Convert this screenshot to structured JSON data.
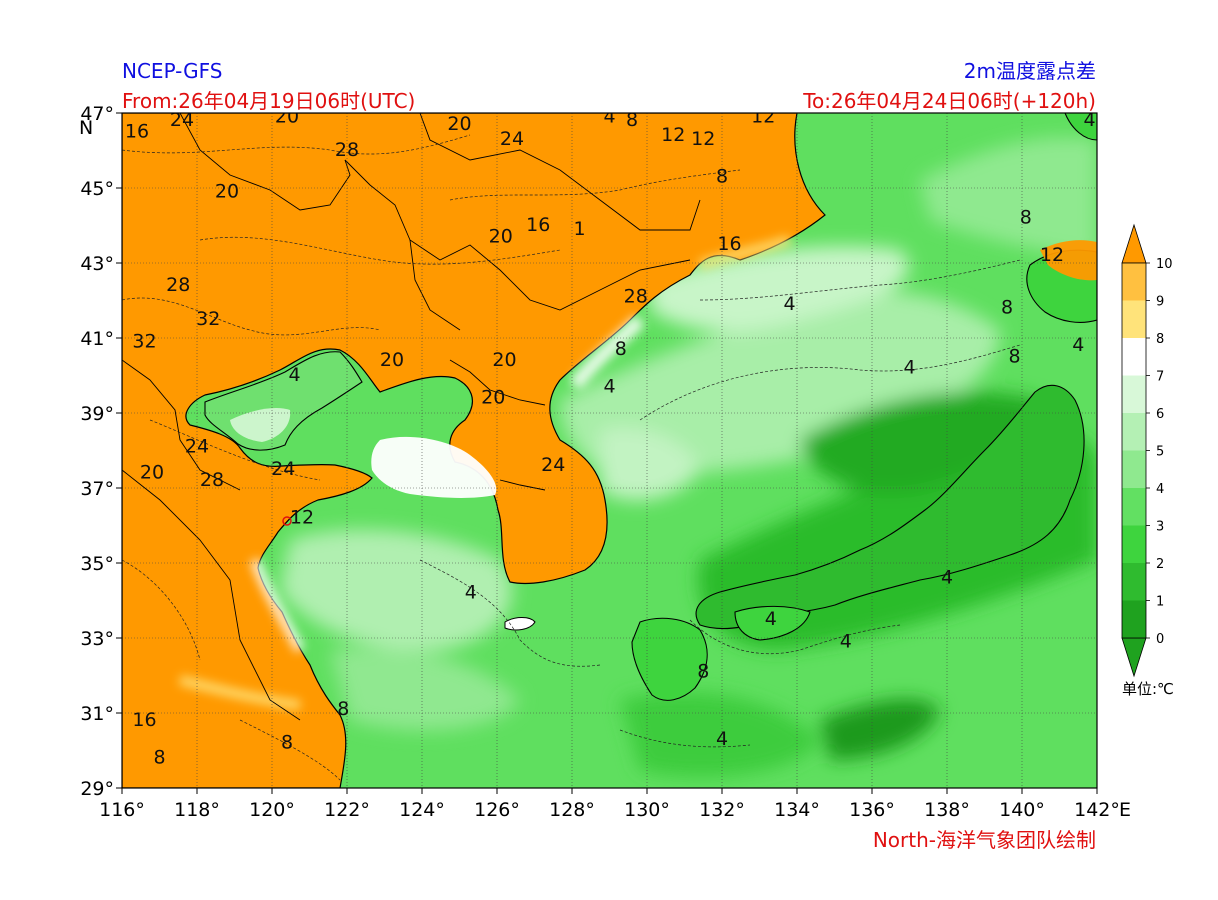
{
  "header": {
    "model": "NCEP-GFS",
    "field": "2m温度露点差",
    "from": "From:26年04月19日06时(UTC)",
    "to": "To:26年04月24日06时(+120h)"
  },
  "footer": {
    "credit": "North-海洋气象团队绘制"
  },
  "map": {
    "lon_range": [
      116,
      142
    ],
    "lat_range": [
      29,
      47
    ],
    "x_ticks": [
      "116°",
      "118°",
      "120°",
      "122°",
      "124°",
      "126°",
      "128°",
      "130°",
      "132°",
      "134°",
      "136°",
      "138°",
      "140°",
      "142°"
    ],
    "y_ticks": [
      "47°",
      "45°",
      "43°",
      "41°",
      "39°",
      "37°",
      "35°",
      "33°",
      "31°",
      "29°"
    ],
    "lon_suffix": "E",
    "lat_suffix": "N",
    "contour_labels": [
      {
        "text": "16",
        "lon": 116.4,
        "lat": 46.5
      },
      {
        "text": "24",
        "lon": 117.6,
        "lat": 46.8
      },
      {
        "text": "20",
        "lon": 120.4,
        "lat": 46.9
      },
      {
        "text": "28",
        "lon": 122.0,
        "lat": 46.0
      },
      {
        "text": "20",
        "lon": 125.0,
        "lat": 46.7
      },
      {
        "text": "24",
        "lon": 126.4,
        "lat": 46.3
      },
      {
        "text": "4",
        "lon": 129.0,
        "lat": 46.9
      },
      {
        "text": "8",
        "lon": 129.6,
        "lat": 46.8
      },
      {
        "text": "12",
        "lon": 130.7,
        "lat": 46.4
      },
      {
        "text": "12",
        "lon": 131.5,
        "lat": 46.3
      },
      {
        "text": "12",
        "lon": 133.1,
        "lat": 46.9
      },
      {
        "text": "20",
        "lon": 118.8,
        "lat": 44.9
      },
      {
        "text": "20",
        "lon": 126.1,
        "lat": 43.7
      },
      {
        "text": "16",
        "lon": 127.1,
        "lat": 44.0
      },
      {
        "text": "1",
        "lon": 128.2,
        "lat": 43.9
      },
      {
        "text": "8",
        "lon": 132.0,
        "lat": 45.3
      },
      {
        "text": "16",
        "lon": 132.2,
        "lat": 43.5
      },
      {
        "text": "28",
        "lon": 117.5,
        "lat": 42.4
      },
      {
        "text": "32",
        "lon": 118.3,
        "lat": 41.5
      },
      {
        "text": "32",
        "lon": 116.6,
        "lat": 40.9
      },
      {
        "text": "28",
        "lon": 129.7,
        "lat": 42.1
      },
      {
        "text": "4",
        "lon": 133.8,
        "lat": 41.9
      },
      {
        "text": "8",
        "lon": 140.1,
        "lat": 44.2
      },
      {
        "text": "12",
        "lon": 140.8,
        "lat": 43.2
      },
      {
        "text": "8",
        "lon": 139.6,
        "lat": 41.8
      },
      {
        "text": "4",
        "lon": 141.5,
        "lat": 40.8
      },
      {
        "text": "8",
        "lon": 139.8,
        "lat": 40.5
      },
      {
        "text": "4",
        "lon": 141.8,
        "lat": 46.8
      },
      {
        "text": "20",
        "lon": 123.2,
        "lat": 40.4
      },
      {
        "text": "20",
        "lon": 126.2,
        "lat": 40.4
      },
      {
        "text": "8",
        "lon": 129.3,
        "lat": 40.7
      },
      {
        "text": "4",
        "lon": 129.0,
        "lat": 39.7
      },
      {
        "text": "4",
        "lon": 137.0,
        "lat": 40.2
      },
      {
        "text": "4",
        "lon": 120.6,
        "lat": 40.0
      },
      {
        "text": "20",
        "lon": 125.9,
        "lat": 39.4
      },
      {
        "text": "24",
        "lon": 118.0,
        "lat": 38.1
      },
      {
        "text": "20",
        "lon": 116.8,
        "lat": 37.4
      },
      {
        "text": "28",
        "lon": 118.4,
        "lat": 37.2
      },
      {
        "text": "24",
        "lon": 120.3,
        "lat": 37.5
      },
      {
        "text": "24",
        "lon": 127.5,
        "lat": 37.6
      },
      {
        "text": "12",
        "lon": 120.8,
        "lat": 36.2
      },
      {
        "text": "4",
        "lon": 125.3,
        "lat": 34.2
      },
      {
        "text": "4",
        "lon": 133.3,
        "lat": 33.5
      },
      {
        "text": "4",
        "lon": 135.3,
        "lat": 32.9
      },
      {
        "text": "4",
        "lon": 138.0,
        "lat": 34.6
      },
      {
        "text": "8",
        "lon": 131.5,
        "lat": 32.1
      },
      {
        "text": "4",
        "lon": 132.0,
        "lat": 30.3
      },
      {
        "text": "16",
        "lon": 116.6,
        "lat": 30.8
      },
      {
        "text": "8",
        "lon": 120.4,
        "lat": 30.2
      },
      {
        "text": "8",
        "lon": 117.0,
        "lat": 29.8
      },
      {
        "text": "8",
        "lon": 121.9,
        "lat": 31.1
      }
    ]
  },
  "colorbar": {
    "levels": [
      "0",
      "1",
      "2",
      "3",
      "4",
      "5",
      "6",
      "7",
      "8",
      "9",
      "10"
    ],
    "colors": [
      "#1fa21f",
      "#2fbb2f",
      "#3ed43e",
      "#62e062",
      "#8fe98f",
      "#b4f0b4",
      "#d8f8d8",
      "#ffffff",
      "#ffe37a",
      "#ffc040",
      "#ff9900"
    ],
    "unit": "单位:℃"
  },
  "colors": {
    "blue_text": "#1010e0",
    "red_text": "#e01010",
    "land_high": "#ff9900"
  }
}
